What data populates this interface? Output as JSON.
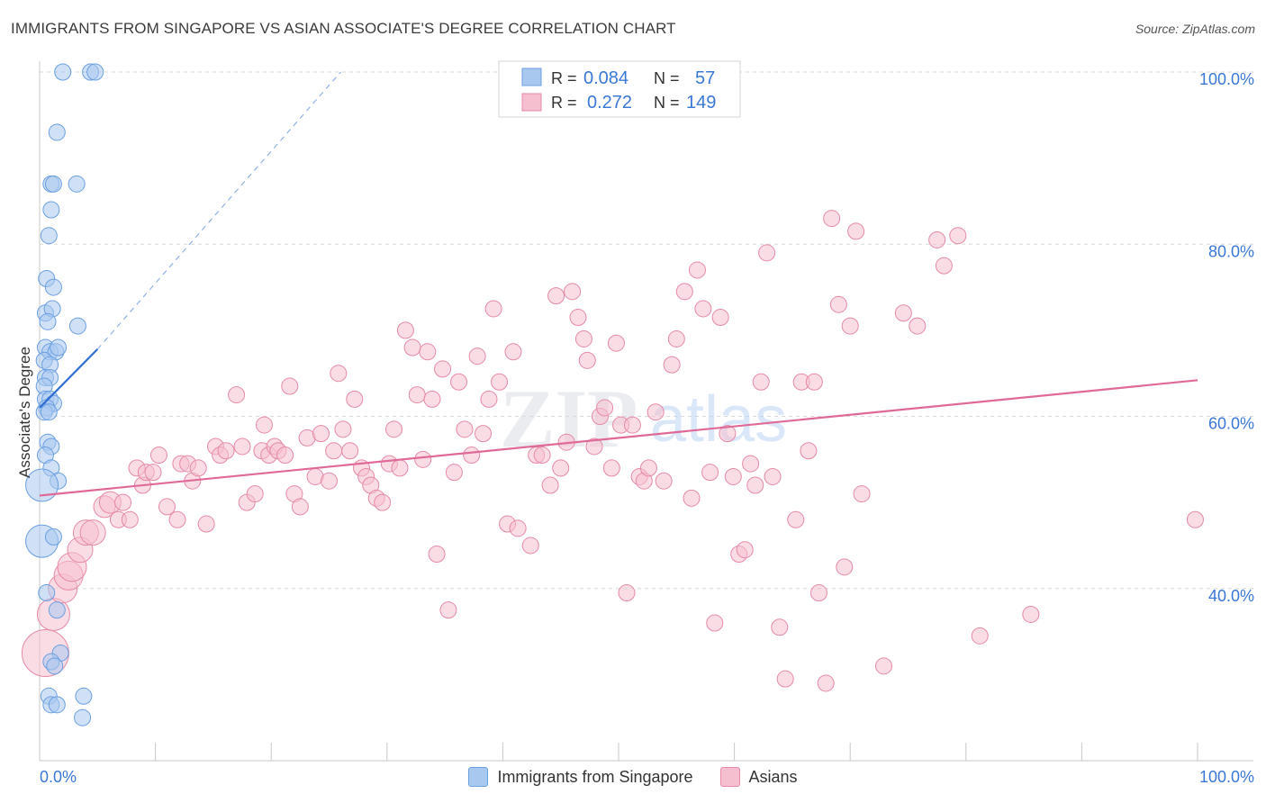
{
  "title": "IMMIGRANTS FROM SINGAPORE VS ASIAN ASSOCIATE'S DEGREE CORRELATION CHART",
  "source": "Source: ZipAtlas.com",
  "watermark": {
    "zip": "ZIP",
    "atlas": "atlas"
  },
  "legend_top": {
    "rows": [
      {
        "r_label": "R =",
        "r_value": "0.084",
        "n_label": "N =",
        "n_value": "57"
      },
      {
        "r_label": "R =",
        "r_value": "0.272",
        "n_label": "N =",
        "n_value": "149"
      }
    ]
  },
  "legend_bottom": {
    "series1": "Immigrants from Singapore",
    "series2": "Asians"
  },
  "colors": {
    "blue_fill": "#a9c8f0",
    "blue_stroke": "#6a9fe0",
    "blue_line": "#2f6fd1",
    "pink_fill": "#f6bfd0",
    "pink_stroke": "#e58aa8",
    "pink_line": "#e06a97",
    "axis_text": "#3b78d6",
    "grid": "#d8d8d8"
  },
  "chart_data": {
    "type": "scatter",
    "title": "IMMIGRANTS FROM SINGAPORE VS ASIAN ASSOCIATE'S DEGREE CORRELATION CHART",
    "xlabel": "",
    "ylabel": "Associate's Degree",
    "xlim": [
      0,
      100
    ],
    "ylim": [
      20,
      100
    ],
    "x_tick_labels": [
      "0.0%",
      "100.0%"
    ],
    "y_ticks": [
      40,
      60,
      80,
      100
    ],
    "y_tick_labels": [
      "40.0%",
      "60.0%",
      "80.0%",
      "100.0%"
    ],
    "series": [
      {
        "name": "Immigrants from Singapore",
        "r": 0.084,
        "n": 57,
        "trend": {
          "x0": 0,
          "y0": 61,
          "x1": 5,
          "y1": 67.8
        },
        "trend_extension": {
          "x0": 5,
          "y0": 67.8,
          "x1": 26,
          "y1": 100
        },
        "points": [
          {
            "x": 2,
            "y": 100
          },
          {
            "x": 4.4,
            "y": 100
          },
          {
            "x": 4.8,
            "y": 100
          },
          {
            "x": 1.5,
            "y": 93
          },
          {
            "x": 1.0,
            "y": 87
          },
          {
            "x": 1.2,
            "y": 87
          },
          {
            "x": 3.2,
            "y": 87
          },
          {
            "x": 1.0,
            "y": 84
          },
          {
            "x": 0.8,
            "y": 81
          },
          {
            "x": 0.6,
            "y": 76
          },
          {
            "x": 1.2,
            "y": 75
          },
          {
            "x": 0.5,
            "y": 72
          },
          {
            "x": 1.1,
            "y": 72.5
          },
          {
            "x": 0.7,
            "y": 71
          },
          {
            "x": 3.3,
            "y": 70.5
          },
          {
            "x": 0.5,
            "y": 68
          },
          {
            "x": 0.9,
            "y": 67.5
          },
          {
            "x": 1.4,
            "y": 67.5
          },
          {
            "x": 1.6,
            "y": 68
          },
          {
            "x": 0.4,
            "y": 66.5
          },
          {
            "x": 0.9,
            "y": 66
          },
          {
            "x": 0.5,
            "y": 64.5
          },
          {
            "x": 0.9,
            "y": 64.5
          },
          {
            "x": 0.4,
            "y": 63.5
          },
          {
            "x": 0.5,
            "y": 62
          },
          {
            "x": 0.9,
            "y": 62
          },
          {
            "x": 1.2,
            "y": 61.5
          },
          {
            "x": 0.6,
            "y": 61
          },
          {
            "x": 0.4,
            "y": 60.5
          },
          {
            "x": 0.8,
            "y": 60.5
          },
          {
            "x": 0.7,
            "y": 57
          },
          {
            "x": 1.0,
            "y": 56.5
          },
          {
            "x": 0.5,
            "y": 55.5
          },
          {
            "x": 1.0,
            "y": 54
          },
          {
            "x": 1.6,
            "y": 52.5
          },
          {
            "x": 0.2,
            "y": 52,
            "size": 18
          },
          {
            "x": 0.2,
            "y": 45.5,
            "size": 18
          },
          {
            "x": 1.2,
            "y": 46
          },
          {
            "x": 0.6,
            "y": 39.5
          },
          {
            "x": 1.5,
            "y": 37.5
          },
          {
            "x": 1.8,
            "y": 32.5
          },
          {
            "x": 1.0,
            "y": 31.5
          },
          {
            "x": 1.3,
            "y": 31
          },
          {
            "x": 0.8,
            "y": 27.5
          },
          {
            "x": 3.8,
            "y": 27.5
          },
          {
            "x": 1.0,
            "y": 26.5
          },
          {
            "x": 1.5,
            "y": 26.5
          },
          {
            "x": 3.7,
            "y": 25
          }
        ]
      },
      {
        "name": "Asians",
        "r": 0.272,
        "n": 149,
        "trend": {
          "x0": 0,
          "y0": 50.8,
          "x1": 100,
          "y1": 64.2
        },
        "points": [
          {
            "x": 0.5,
            "y": 32.5,
            "size": 26
          },
          {
            "x": 1.2,
            "y": 37,
            "size": 18
          },
          {
            "x": 2,
            "y": 40,
            "size": 16
          },
          {
            "x": 2.5,
            "y": 41.5,
            "size": 16
          },
          {
            "x": 2.8,
            "y": 42.5,
            "size": 16
          },
          {
            "x": 3.5,
            "y": 44.5,
            "size": 14
          },
          {
            "x": 4,
            "y": 46.5,
            "size": 14
          },
          {
            "x": 4.6,
            "y": 46.5,
            "size": 14
          },
          {
            "x": 5.6,
            "y": 49.5,
            "size": 12
          },
          {
            "x": 6.1,
            "y": 50,
            "size": 12
          },
          {
            "x": 7.2,
            "y": 50
          },
          {
            "x": 6.8,
            "y": 48
          },
          {
            "x": 7.8,
            "y": 48
          },
          {
            "x": 8.4,
            "y": 54
          },
          {
            "x": 8.9,
            "y": 52
          },
          {
            "x": 9.2,
            "y": 53.5
          },
          {
            "x": 9.8,
            "y": 53.5
          },
          {
            "x": 10.3,
            "y": 55.5
          },
          {
            "x": 11.0,
            "y": 49.5
          },
          {
            "x": 11.9,
            "y": 48
          },
          {
            "x": 12.2,
            "y": 54.5
          },
          {
            "x": 12.8,
            "y": 54.5
          },
          {
            "x": 13.2,
            "y": 52.5
          },
          {
            "x": 13.7,
            "y": 54
          },
          {
            "x": 14.4,
            "y": 47.5
          },
          {
            "x": 15.2,
            "y": 56.5
          },
          {
            "x": 15.6,
            "y": 55.5
          },
          {
            "x": 16.1,
            "y": 56
          },
          {
            "x": 17.0,
            "y": 62.5
          },
          {
            "x": 17.5,
            "y": 56.5
          },
          {
            "x": 17.9,
            "y": 50
          },
          {
            "x": 18.6,
            "y": 51
          },
          {
            "x": 19.2,
            "y": 56
          },
          {
            "x": 19.4,
            "y": 59
          },
          {
            "x": 19.8,
            "y": 55.5
          },
          {
            "x": 20.3,
            "y": 56.5
          },
          {
            "x": 20.6,
            "y": 56
          },
          {
            "x": 21.2,
            "y": 55.5
          },
          {
            "x": 21.6,
            "y": 63.5
          },
          {
            "x": 22.0,
            "y": 51
          },
          {
            "x": 22.5,
            "y": 49.5
          },
          {
            "x": 23.1,
            "y": 57.5
          },
          {
            "x": 23.8,
            "y": 53
          },
          {
            "x": 24.3,
            "y": 58
          },
          {
            "x": 25.0,
            "y": 52.5
          },
          {
            "x": 25.4,
            "y": 56
          },
          {
            "x": 25.8,
            "y": 65
          },
          {
            "x": 26.2,
            "y": 58.5
          },
          {
            "x": 26.8,
            "y": 56
          },
          {
            "x": 27.2,
            "y": 62
          },
          {
            "x": 27.8,
            "y": 54
          },
          {
            "x": 28.2,
            "y": 53
          },
          {
            "x": 28.6,
            "y": 52
          },
          {
            "x": 29.1,
            "y": 50.5
          },
          {
            "x": 29.6,
            "y": 50
          },
          {
            "x": 30.2,
            "y": 54.5
          },
          {
            "x": 30.6,
            "y": 58.5
          },
          {
            "x": 31.1,
            "y": 54
          },
          {
            "x": 31.6,
            "y": 70
          },
          {
            "x": 32.2,
            "y": 68
          },
          {
            "x": 32.6,
            "y": 62.5
          },
          {
            "x": 33.1,
            "y": 55
          },
          {
            "x": 33.5,
            "y": 67.5
          },
          {
            "x": 33.9,
            "y": 62
          },
          {
            "x": 34.3,
            "y": 44
          },
          {
            "x": 34.8,
            "y": 65.5
          },
          {
            "x": 35.3,
            "y": 37.5
          },
          {
            "x": 35.8,
            "y": 53.5
          },
          {
            "x": 36.2,
            "y": 64
          },
          {
            "x": 36.7,
            "y": 58.5
          },
          {
            "x": 37.3,
            "y": 55.5
          },
          {
            "x": 37.8,
            "y": 67
          },
          {
            "x": 38.3,
            "y": 58
          },
          {
            "x": 38.8,
            "y": 62
          },
          {
            "x": 39.2,
            "y": 72.5
          },
          {
            "x": 39.7,
            "y": 64
          },
          {
            "x": 40.4,
            "y": 47.5
          },
          {
            "x": 40.9,
            "y": 67.5
          },
          {
            "x": 41.3,
            "y": 47
          },
          {
            "x": 42.4,
            "y": 45
          },
          {
            "x": 42.9,
            "y": 55.5
          },
          {
            "x": 43.4,
            "y": 55.5
          },
          {
            "x": 44.1,
            "y": 52
          },
          {
            "x": 44.6,
            "y": 74
          },
          {
            "x": 45.0,
            "y": 54
          },
          {
            "x": 45.5,
            "y": 57
          },
          {
            "x": 46.0,
            "y": 74.5
          },
          {
            "x": 46.5,
            "y": 71.5
          },
          {
            "x": 47.0,
            "y": 69
          },
          {
            "x": 47.3,
            "y": 66.5
          },
          {
            "x": 47.9,
            "y": 56.5
          },
          {
            "x": 48.4,
            "y": 60
          },
          {
            "x": 48.8,
            "y": 61
          },
          {
            "x": 49.4,
            "y": 54
          },
          {
            "x": 49.8,
            "y": 68.5
          },
          {
            "x": 50.2,
            "y": 59
          },
          {
            "x": 50.7,
            "y": 39.5
          },
          {
            "x": 51.2,
            "y": 59
          },
          {
            "x": 51.8,
            "y": 53
          },
          {
            "x": 52.2,
            "y": 52.5
          },
          {
            "x": 52.6,
            "y": 54
          },
          {
            "x": 53.2,
            "y": 60.5
          },
          {
            "x": 53.9,
            "y": 52.5
          },
          {
            "x": 54.6,
            "y": 66
          },
          {
            "x": 55.0,
            "y": 69
          },
          {
            "x": 55.7,
            "y": 74.5
          },
          {
            "x": 56.3,
            "y": 50.5
          },
          {
            "x": 56.8,
            "y": 77
          },
          {
            "x": 57.3,
            "y": 72.5
          },
          {
            "x": 57.9,
            "y": 53.5
          },
          {
            "x": 58.3,
            "y": 36
          },
          {
            "x": 58.8,
            "y": 71.5
          },
          {
            "x": 59.4,
            "y": 58
          },
          {
            "x": 59.9,
            "y": 53
          },
          {
            "x": 60.4,
            "y": 44
          },
          {
            "x": 60.9,
            "y": 44.5
          },
          {
            "x": 61.4,
            "y": 54.5
          },
          {
            "x": 61.8,
            "y": 52
          },
          {
            "x": 62.3,
            "y": 64
          },
          {
            "x": 62.8,
            "y": 79
          },
          {
            "x": 63.3,
            "y": 53
          },
          {
            "x": 63.9,
            "y": 35.5
          },
          {
            "x": 64.4,
            "y": 29.5
          },
          {
            "x": 65.3,
            "y": 48
          },
          {
            "x": 65.8,
            "y": 64
          },
          {
            "x": 66.4,
            "y": 56
          },
          {
            "x": 66.9,
            "y": 64
          },
          {
            "x": 67.3,
            "y": 39.5
          },
          {
            "x": 67.9,
            "y": 29
          },
          {
            "x": 68.4,
            "y": 83
          },
          {
            "x": 69.0,
            "y": 73
          },
          {
            "x": 69.5,
            "y": 42.5
          },
          {
            "x": 70.0,
            "y": 70.5
          },
          {
            "x": 70.5,
            "y": 81.5
          },
          {
            "x": 71.0,
            "y": 51
          },
          {
            "x": 72.9,
            "y": 31
          },
          {
            "x": 74.6,
            "y": 72
          },
          {
            "x": 75.8,
            "y": 70.5
          },
          {
            "x": 77.5,
            "y": 80.5
          },
          {
            "x": 78.1,
            "y": 77.5
          },
          {
            "x": 79.3,
            "y": 81
          },
          {
            "x": 81.2,
            "y": 34.5
          },
          {
            "x": 85.6,
            "y": 37
          },
          {
            "x": 99.8,
            "y": 48
          }
        ]
      }
    ]
  }
}
